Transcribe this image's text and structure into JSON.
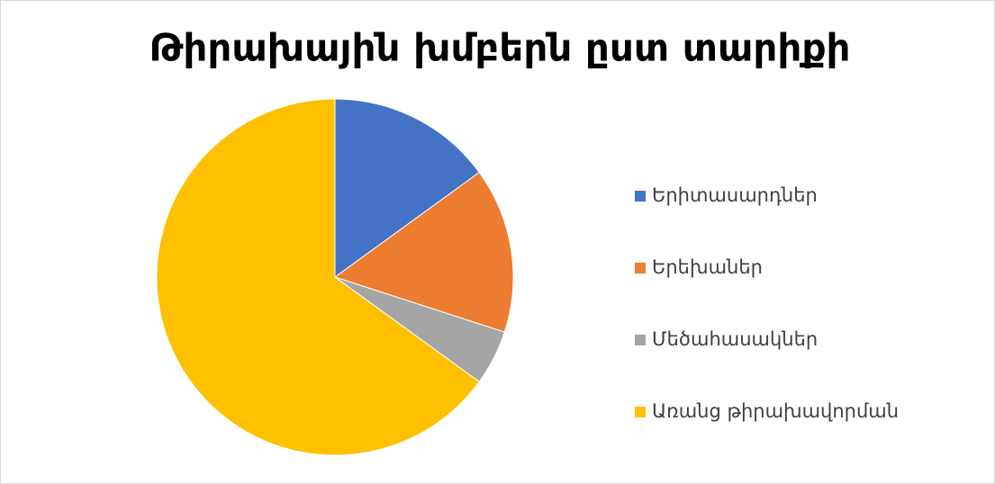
{
  "chart_data": {
    "type": "pie",
    "title": "Թիրախային խմբերն ըստ տարիքի",
    "categories": [
      "Երիտասարդներ",
      "Երեխաներ",
      "Մեծահասակներ",
      "Առանց թիրախավորման"
    ],
    "values": [
      15,
      15,
      5,
      65
    ],
    "colors": [
      "#4472c4",
      "#ed7d31",
      "#a5a5a5",
      "#ffc000"
    ],
    "legend": "right"
  }
}
